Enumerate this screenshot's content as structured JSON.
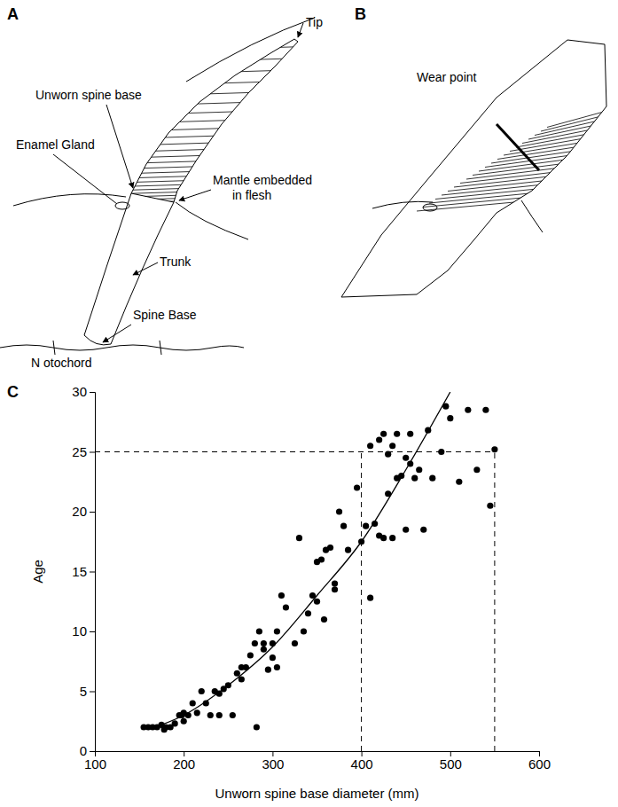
{
  "panels": {
    "A": {
      "letter": "A",
      "labels": {
        "tip": "Tip",
        "unworn_spine_base": "Unworn spine base",
        "enamel_gland": "Enamel Gland",
        "mantle": "Mantle embedded in flesh",
        "trunk": "Trunk",
        "spine_base": "Spine Base",
        "notochord": "N otochord"
      }
    },
    "B": {
      "letter": "B",
      "labels": {
        "wear_point": "Wear point"
      }
    }
  },
  "chart_data": {
    "letter": "C",
    "type": "scatter",
    "x_label": "Unworn spine base diameter (mm)",
    "y_label": "Age",
    "xlim": [
      100,
      600
    ],
    "ylim": [
      0,
      30
    ],
    "xticks": [
      100,
      200,
      300,
      400,
      500,
      600
    ],
    "yticks": [
      0,
      5,
      10,
      15,
      20,
      25,
      30
    ],
    "series": [
      {
        "type": "scatter",
        "marker": "circle",
        "color": "#000000",
        "x": [
          155,
          160,
          165,
          170,
          175,
          178,
          180,
          185,
          190,
          195,
          198,
          200,
          200,
          205,
          210,
          215,
          220,
          225,
          230,
          235,
          240,
          240,
          245,
          250,
          255,
          260,
          265,
          265,
          270,
          275,
          280,
          282,
          285,
          290,
          290,
          295,
          300,
          300,
          305,
          305,
          310,
          315,
          325,
          330,
          335,
          340,
          345,
          350,
          350,
          355,
          358,
          360,
          365,
          370,
          370,
          375,
          380,
          385,
          395,
          400,
          405,
          410,
          410,
          415,
          420,
          420,
          425,
          425,
          430,
          430,
          435,
          435,
          440,
          440,
          445,
          450,
          450,
          455,
          455,
          460,
          465,
          470,
          475,
          480,
          490,
          495,
          500,
          510,
          520,
          530,
          540,
          545,
          550
        ],
        "values": [
          2,
          2,
          2,
          2,
          2.2,
          1.8,
          2,
          2,
          2.3,
          3,
          3,
          2.5,
          3.2,
          3,
          4,
          3.2,
          5,
          4,
          3,
          5,
          4.8,
          3,
          5.2,
          5.5,
          3,
          6.5,
          7,
          6,
          7,
          8,
          9,
          2,
          10,
          9,
          8.5,
          6.8,
          7.8,
          9,
          10,
          7,
          13,
          12,
          9,
          17.8,
          10,
          11.5,
          13,
          15.8,
          12.5,
          16,
          11,
          16.8,
          17,
          14,
          13.5,
          20,
          18.8,
          16.8,
          22,
          17.5,
          18.8,
          12.8,
          25.5,
          19,
          18,
          26,
          26.5,
          17.8,
          21.5,
          24.8,
          25.5,
          17.8,
          26.5,
          22.8,
          23,
          24.5,
          18.5,
          26.5,
          24,
          22.8,
          23.5,
          18.5,
          26.8,
          22.8,
          25,
          28.8,
          27.8,
          22.5,
          28.5,
          23.5,
          28.5,
          20.5,
          25.2
        ]
      },
      {
        "type": "line",
        "line_style": "solid",
        "color": "#000000",
        "x": [
          160,
          200,
          250,
          300,
          350,
          400,
          450,
          500
        ],
        "values": [
          1.8,
          3,
          5.5,
          8.7,
          13,
          17.5,
          23.5,
          30
        ]
      }
    ],
    "reference_lines": {
      "y": 25,
      "x": [
        400,
        550
      ],
      "line_style": "dashed"
    }
  }
}
